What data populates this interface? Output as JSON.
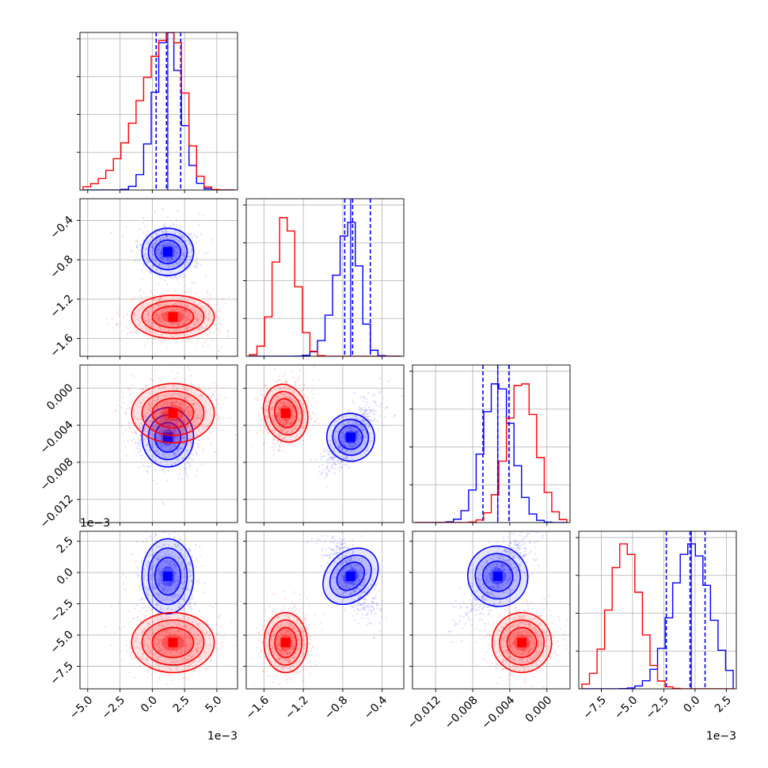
{
  "figure": {
    "type": "corner-plot",
    "background": "#ffffff"
  },
  "colors": {
    "series_a": "#0000ff",
    "series_b": "#ff0000",
    "grid": "#b0b0b0",
    "axes": "#000000"
  },
  "chart_data": {
    "type": "corner",
    "grid": true,
    "parameters": [
      {
        "ticks": [
          -5.0,
          -2.5,
          0.0,
          2.5,
          5.0
        ],
        "tick_labels": [
          "−5.0",
          "−2.5",
          "0.0",
          "2.5",
          "5.0"
        ],
        "range": [
          -5.6,
          6.6
        ],
        "offset_label": "1e−3"
      },
      {
        "ticks": [
          -1.6,
          -1.2,
          -0.8,
          -0.4
        ],
        "tick_labels": [
          "−1.6",
          "−1.2",
          "−0.8",
          "−0.4"
        ],
        "range": [
          -1.78,
          -0.18
        ],
        "offset_label": ""
      },
      {
        "ticks": [
          -0.012,
          -0.008,
          -0.004,
          0.0
        ],
        "tick_labels": [
          "−0.012",
          "−0.008",
          "−0.004",
          "0.000"
        ],
        "range": [
          -0.0145,
          0.0025
        ],
        "offset_label": ""
      },
      {
        "ticks": [
          -7.5,
          -5.0,
          -2.5,
          0.0,
          2.5
        ],
        "tick_labels": [
          "−7.5",
          "−5.0",
          "−2.5",
          "0.0",
          "2.5"
        ],
        "range": [
          -9.3,
          3.3
        ],
        "offset_label": "1e−3"
      }
    ],
    "series": [
      {
        "color": "#0000ff",
        "means": [
          1.2,
          -0.72,
          -0.0053,
          -0.3
        ],
        "sigmas": [
          1.0,
          0.12,
          0.0016,
          1.5
        ],
        "quantiles": [
          [
            0.3,
            1.1,
            2.2
          ],
          [
            -0.78,
            -0.7,
            -0.52
          ],
          [
            -0.0069,
            -0.0053,
            -0.0041
          ],
          [
            -2.3,
            -0.4,
            0.8
          ]
        ]
      },
      {
        "color": "#ff0000",
        "means": [
          1.6,
          -1.38,
          -0.0027,
          -5.6
        ],
        "sigmas": [
          1.6,
          0.11,
          0.0016,
          1.2
        ],
        "quantiles": [
          [],
          [],
          [],
          []
        ]
      }
    ],
    "hist_peak_heights": {
      "p0": {
        "blue": 1.0,
        "red": 1.0
      },
      "p1": {
        "blue": 0.85,
        "red": 0.88
      },
      "p2": {
        "blue": 0.88,
        "red": 0.88
      },
      "p3": {
        "blue": 0.92,
        "red": 0.92
      }
    }
  }
}
